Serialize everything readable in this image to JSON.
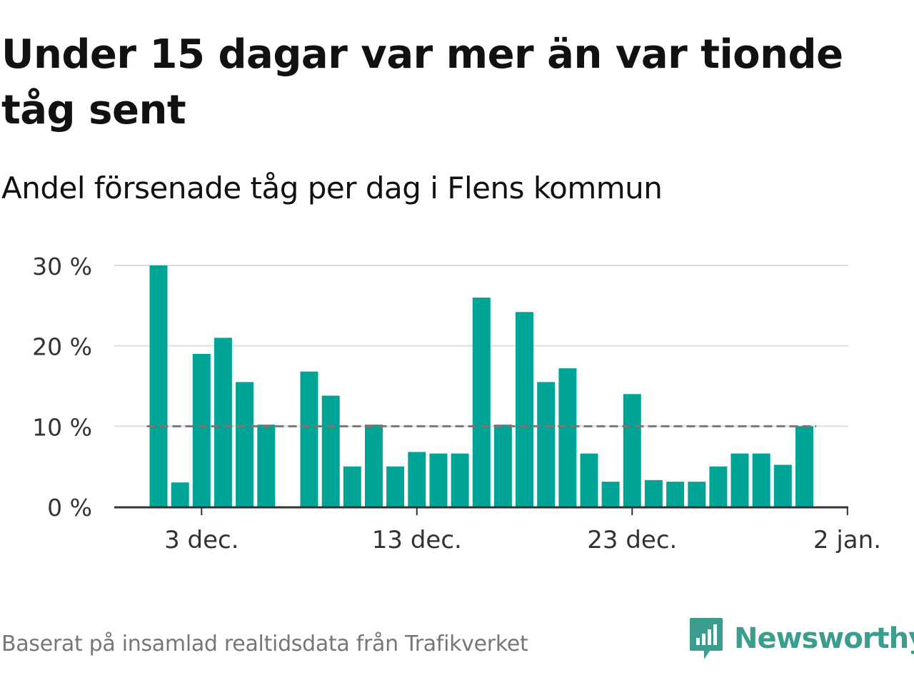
{
  "title": "Under 15 dagar var mer än var tionde tåg sent",
  "subtitle": "Andel försenade tåg per dag i Flens kommun",
  "source": "Baserat på insamlad realtidsdata från Trafikverket",
  "brand": {
    "name": "Newsworthy",
    "icon": "newsworthy-logo-icon",
    "color": "#3a9d8d"
  },
  "colors": {
    "bar": "#00a497",
    "grid": "#dddddd",
    "reference_line": "#777777",
    "axis": "#333333",
    "text": "#111111",
    "muted_text": "#777777"
  },
  "chart_data": {
    "type": "bar",
    "x": [
      "2023-12-01",
      "2023-12-02",
      "2023-12-03",
      "2023-12-04",
      "2023-12-05",
      "2023-12-06",
      "2023-12-07",
      "2023-12-08",
      "2023-12-09",
      "2023-12-10",
      "2023-12-11",
      "2023-12-12",
      "2023-12-13",
      "2023-12-14",
      "2023-12-15",
      "2023-12-16",
      "2023-12-17",
      "2023-12-18",
      "2023-12-19",
      "2023-12-20",
      "2023-12-21",
      "2023-12-22",
      "2023-12-23",
      "2023-12-24",
      "2023-12-25",
      "2023-12-26",
      "2023-12-27",
      "2023-12-28",
      "2023-12-29",
      "2023-12-30",
      "2023-12-31"
    ],
    "values": [
      30,
      3,
      19,
      21,
      15.5,
      10.2,
      null,
      16.8,
      13.8,
      5,
      10.2,
      5,
      6.8,
      6.6,
      6.6,
      26,
      10.2,
      24.2,
      15.5,
      17.2,
      6.6,
      3.1,
      14,
      3.3,
      3.1,
      3.1,
      5,
      6.6,
      6.6,
      5.2,
      10
    ],
    "xticks": [
      "3 dec.",
      "13 dec.",
      "23 dec.",
      "2 jan."
    ],
    "xtick_dates": [
      "2023-12-03",
      "2023-12-13",
      "2023-12-23",
      "2024-01-02"
    ],
    "yticks": [
      "0 %",
      "10 %",
      "20 %",
      "30 %"
    ],
    "ytick_values": [
      0,
      10,
      20,
      30
    ],
    "ylim": [
      0,
      30
    ],
    "reference_line": 10,
    "grid": true,
    "xlabel": "",
    "ylabel": ""
  }
}
